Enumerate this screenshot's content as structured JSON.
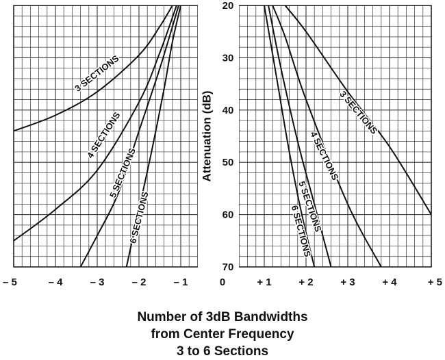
{
  "chart_data": {
    "type": "line",
    "title": "",
    "xlabel": "Number of 3dB Bandwidths from Center Frequency",
    "ylabel": "Attenuation (dB)",
    "caption_lines": [
      "Number of 3dB Bandwidths",
      "from Center Frequency",
      "3 to 6 Sections"
    ],
    "xlim": [
      -5,
      5
    ],
    "ylim": [
      20,
      70
    ],
    "y_inverted": true,
    "grid": true,
    "x_ticks": [
      "– 5",
      "– 4",
      "– 3",
      "– 2",
      "– 1",
      "0",
      "+ 1",
      "+ 2",
      "+ 3",
      "+ 4",
      "+ 5"
    ],
    "y_ticks": [
      "20",
      "30",
      "40",
      "50",
      "60",
      "70"
    ],
    "series": [
      {
        "name": "3 SECTIONS",
        "side": "left",
        "x": [
          -5.0,
          -4.0,
          -3.0,
          -2.0,
          -1.5,
          -1.2
        ],
        "y": [
          44.0,
          41.0,
          36.5,
          29.5,
          24.0,
          20.0
        ]
      },
      {
        "name": "4 SECTIONS",
        "side": "left",
        "x": [
          -5.0,
          -4.0,
          -3.0,
          -2.0,
          -1.5,
          -1.1
        ],
        "y": [
          65.0,
          59.0,
          51.5,
          38.5,
          29.0,
          20.0
        ]
      },
      {
        "name": "5 SECTIONS",
        "side": "left",
        "x": [
          -3.4,
          -3.0,
          -2.5,
          -2.0,
          -1.5,
          -1.05
        ],
        "y": [
          70.0,
          64.0,
          56.0,
          44.0,
          32.0,
          20.0
        ]
      },
      {
        "name": "6 SECTIONS",
        "side": "left",
        "x": [
          -2.3,
          -2.0,
          -1.7,
          -1.4,
          -1.2,
          -1.0
        ],
        "y": [
          70.0,
          59.0,
          48.0,
          36.0,
          27.0,
          20.0
        ]
      },
      {
        "name": "3 SECTIONS",
        "side": "right",
        "x": [
          1.5,
          2.0,
          3.0,
          4.0,
          5.0
        ],
        "y": [
          20.0,
          25.0,
          36.5,
          47.0,
          60.0
        ]
      },
      {
        "name": "4 SECTIONS",
        "side": "right",
        "x": [
          1.2,
          1.5,
          2.0,
          3.0,
          3.8
        ],
        "y": [
          20.0,
          26.0,
          38.0,
          58.0,
          70.0
        ]
      },
      {
        "name": "5 SECTIONS",
        "side": "right",
        "x": [
          1.1,
          1.4,
          1.8,
          2.2,
          2.6
        ],
        "y": [
          20.0,
          32.0,
          46.0,
          58.0,
          70.0
        ]
      },
      {
        "name": "6 SECTIONS",
        "side": "right",
        "x": [
          1.0,
          1.3,
          1.6,
          1.9,
          2.2
        ],
        "y": [
          20.0,
          34.0,
          48.0,
          60.0,
          70.0
        ]
      }
    ]
  }
}
